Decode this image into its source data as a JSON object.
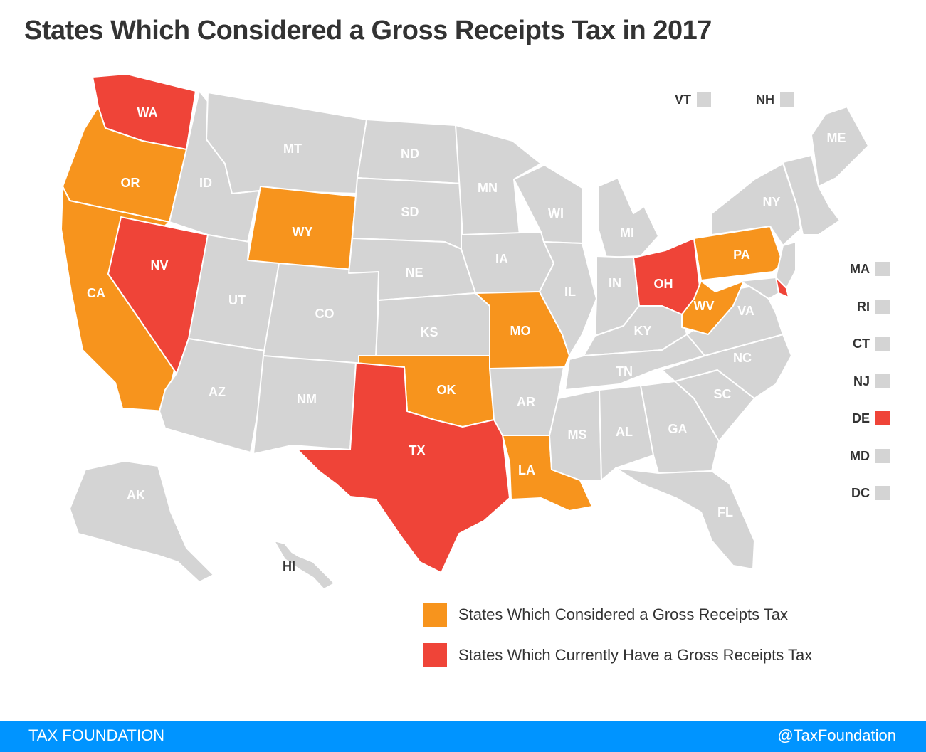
{
  "title": "States Which Considered a Gross Receipts Tax in 2017",
  "colors": {
    "considered": "#F7941D",
    "current": "#EF4438",
    "none": "#D4D4D4",
    "label_on_color": "#FFFFFF",
    "label_dark": "#333333",
    "footer_bg": "#0094FF"
  },
  "legend": {
    "considered": "States Which Considered a Gross Receipts Tax",
    "current": "States Which Currently Have a Gross Receipts Tax"
  },
  "states": {
    "WA": {
      "label": "WA",
      "category": "current"
    },
    "OR": {
      "label": "OR",
      "category": "considered"
    },
    "CA": {
      "label": "CA",
      "category": "considered"
    },
    "NV": {
      "label": "NV",
      "category": "current"
    },
    "ID": {
      "label": "ID",
      "category": "none"
    },
    "MT": {
      "label": "MT",
      "category": "none"
    },
    "WY": {
      "label": "WY",
      "category": "considered"
    },
    "UT": {
      "label": "UT",
      "category": "none"
    },
    "AZ": {
      "label": "AZ",
      "category": "none"
    },
    "CO": {
      "label": "CO",
      "category": "none"
    },
    "NM": {
      "label": "NM",
      "category": "none"
    },
    "ND": {
      "label": "ND",
      "category": "none"
    },
    "SD": {
      "label": "SD",
      "category": "none"
    },
    "NE": {
      "label": "NE",
      "category": "none"
    },
    "KS": {
      "label": "KS",
      "category": "none"
    },
    "OK": {
      "label": "OK",
      "category": "considered"
    },
    "TX": {
      "label": "TX",
      "category": "current"
    },
    "MN": {
      "label": "MN",
      "category": "none"
    },
    "IA": {
      "label": "IA",
      "category": "none"
    },
    "MO": {
      "label": "MO",
      "category": "considered"
    },
    "AR": {
      "label": "AR",
      "category": "none"
    },
    "LA": {
      "label": "LA",
      "category": "considered"
    },
    "WI": {
      "label": "WI",
      "category": "none"
    },
    "IL": {
      "label": "IL",
      "category": "none"
    },
    "MI": {
      "label": "MI",
      "category": "none"
    },
    "IN": {
      "label": "IN",
      "category": "none"
    },
    "OH": {
      "label": "OH",
      "category": "current"
    },
    "KY": {
      "label": "KY",
      "category": "none"
    },
    "TN": {
      "label": "TN",
      "category": "none"
    },
    "MS": {
      "label": "MS",
      "category": "none"
    },
    "AL": {
      "label": "AL",
      "category": "none"
    },
    "GA": {
      "label": "GA",
      "category": "none"
    },
    "FL": {
      "label": "FL",
      "category": "none"
    },
    "SC": {
      "label": "SC",
      "category": "none"
    },
    "NC": {
      "label": "NC",
      "category": "none"
    },
    "VA": {
      "label": "VA",
      "category": "none"
    },
    "WV": {
      "label": "WV",
      "category": "considered"
    },
    "PA": {
      "label": "PA",
      "category": "considered"
    },
    "NY": {
      "label": "NY",
      "category": "none"
    },
    "ME": {
      "label": "ME",
      "category": "none"
    },
    "AK": {
      "label": "AK",
      "category": "none"
    },
    "HI": {
      "label": "HI",
      "category": "none"
    },
    "DE": {
      "label": "",
      "category": "current"
    },
    "MD": {
      "label": "",
      "category": "none"
    },
    "NJ": {
      "label": "",
      "category": "none"
    },
    "NE_small": {
      "label": "",
      "category": "none"
    }
  },
  "small_states": [
    {
      "code": "VT",
      "category": "none"
    },
    {
      "code": "NH",
      "category": "none"
    },
    {
      "code": "MA",
      "category": "none"
    },
    {
      "code": "RI",
      "category": "none"
    },
    {
      "code": "CT",
      "category": "none"
    },
    {
      "code": "NJ",
      "category": "none"
    },
    {
      "code": "DE",
      "category": "current"
    },
    {
      "code": "MD",
      "category": "none"
    },
    {
      "code": "DC",
      "category": "none"
    }
  ],
  "footer": {
    "left": "TAX FOUNDATION",
    "right": "@TaxFoundation"
  }
}
